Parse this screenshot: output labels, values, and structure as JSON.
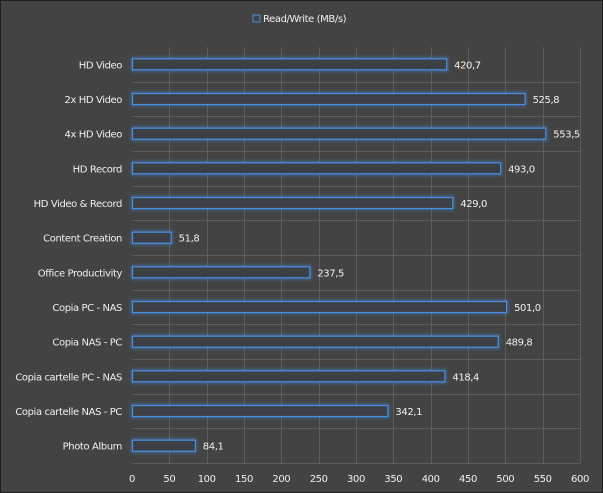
{
  "chart_data": {
    "type": "bar",
    "orientation": "horizontal",
    "title": "",
    "legend": {
      "entries": [
        "Read/Write (MB/s)"
      ],
      "placement": "top-center"
    },
    "categories": [
      "HD Video",
      "2x HD Video",
      "4x HD Video",
      "HD Record",
      "HD Video & Record",
      "Content Creation",
      "Office Productivity",
      "Copia PC - NAS",
      "Copia NAS - PC",
      "Copia cartelle PC - NAS",
      "Copia cartelle NAS - PC",
      "Photo Album"
    ],
    "series": [
      {
        "name": "Read/Write (MB/s)",
        "values": [
          420.7,
          525.8,
          553.5,
          493.0,
          429.0,
          51.8,
          237.5,
          501.0,
          489.8,
          418.4,
          342.1,
          84.1
        ]
      }
    ],
    "data_labels": [
      "420,7",
      "525,8",
      "553,5",
      "493,0",
      "429,0",
      "51,8",
      "237,5",
      "501,0",
      "489,8",
      "418,4",
      "342,1",
      "84,1"
    ],
    "xlim": [
      0,
      600
    ],
    "xticks": [
      0,
      50,
      100,
      150,
      200,
      250,
      300,
      350,
      400,
      450,
      500,
      550,
      600
    ],
    "grid": true,
    "colors": {
      "background": "#434343",
      "bar_stroke": "#4a8fe6",
      "bar_fill": "#3c3f44",
      "grid": "#5c5c5c",
      "text": "#f0f0f0"
    }
  }
}
